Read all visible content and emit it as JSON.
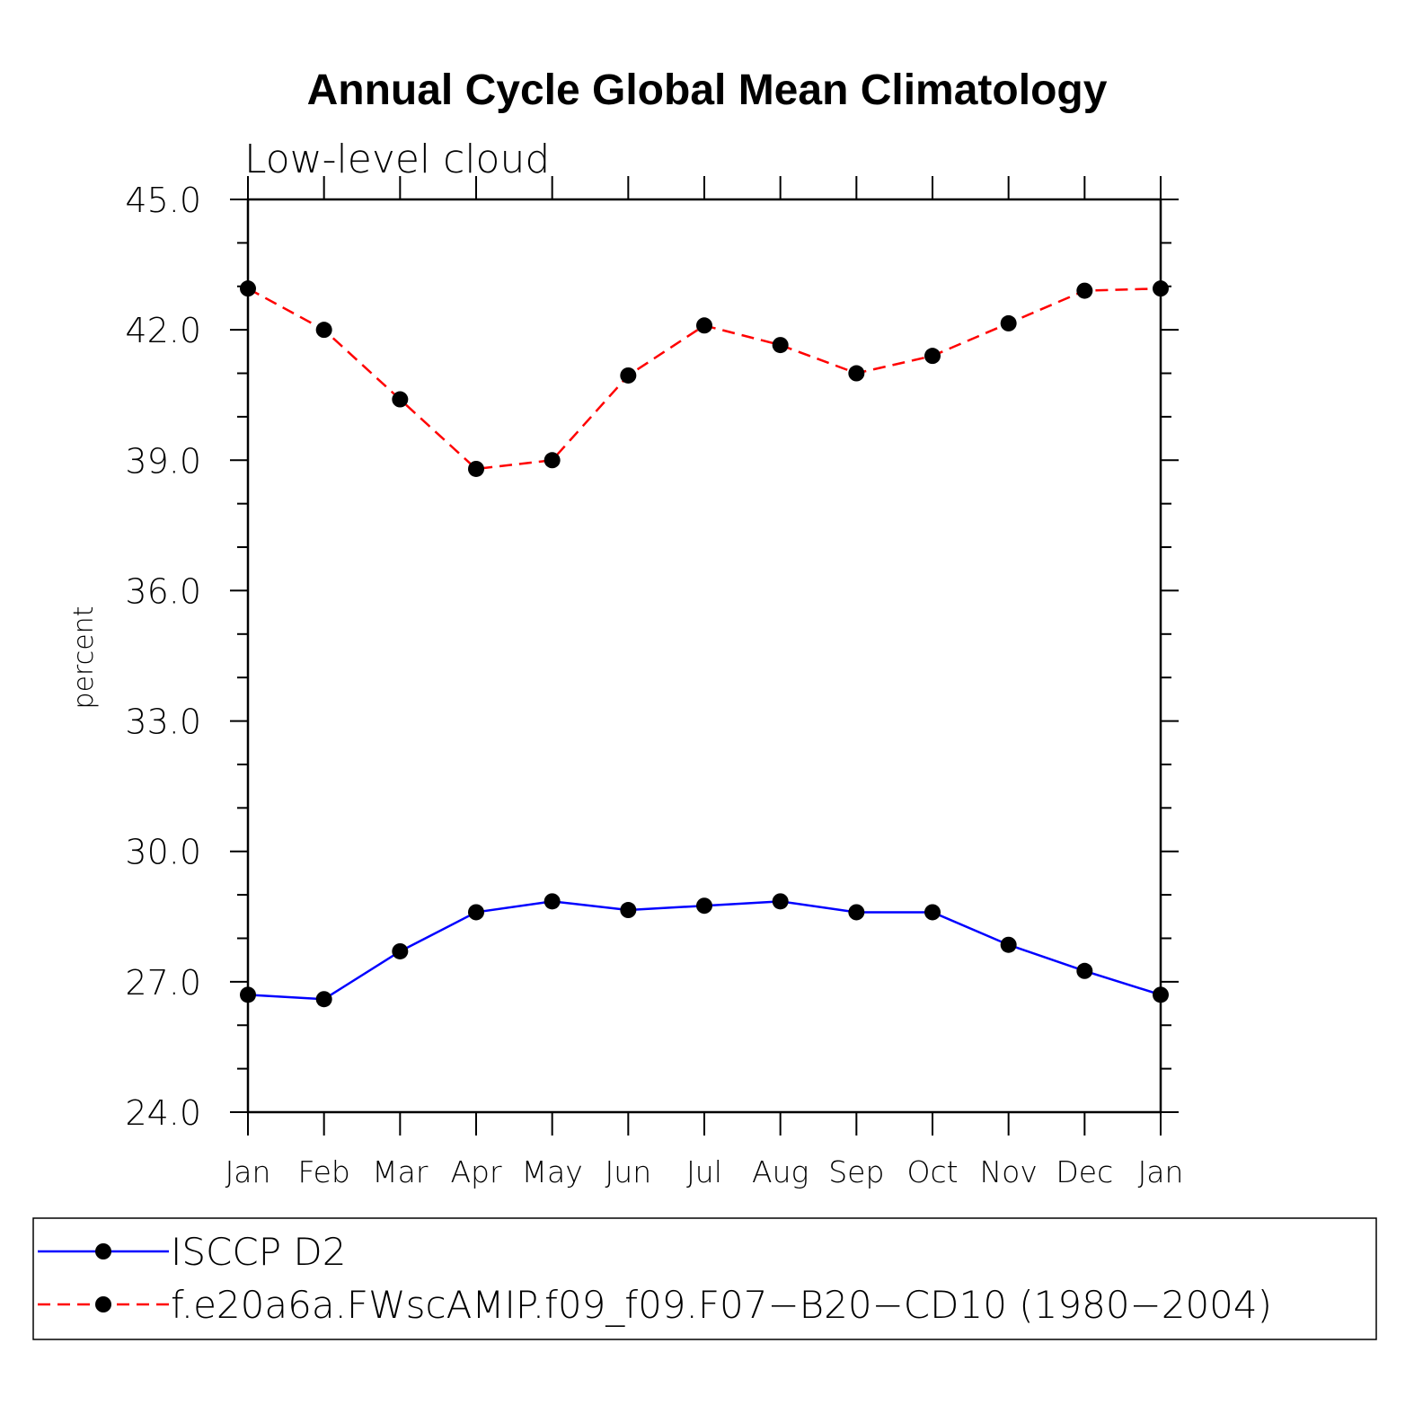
{
  "chart_data": {
    "type": "line",
    "title": "Annual Cycle Global Mean Climatology",
    "subtitle": "Low-level cloud",
    "ylabel": "percent",
    "xlabel": "",
    "categories": [
      "Jan",
      "Feb",
      "Mar",
      "Apr",
      "May",
      "Jun",
      "Jul",
      "Aug",
      "Sep",
      "Oct",
      "Nov",
      "Dec",
      "Jan"
    ],
    "ylim": [
      24.0,
      45.0
    ],
    "yticks": [
      "24.0",
      "27.0",
      "30.0",
      "33.0",
      "36.0",
      "39.0",
      "42.0",
      "45.0"
    ],
    "grid": false,
    "legend_position": "bottom",
    "series": [
      {
        "name": "ISCCP D2",
        "color": "#0000ff",
        "dash": "solid",
        "marker": "filled-circle",
        "values": [
          26.7,
          26.6,
          27.7,
          28.6,
          28.85,
          28.65,
          28.75,
          28.85,
          28.6,
          28.6,
          27.85,
          27.25,
          26.7
        ]
      },
      {
        "name": "f.e20a6a.FWscAMIP.f09_f09.F07−B20−CD10 (1980−2004)",
        "color": "#ff0000",
        "dash": "dashed",
        "marker": "filled-circle",
        "values": [
          42.95,
          42.0,
          40.4,
          38.8,
          39.0,
          40.95,
          42.1,
          41.65,
          41.0,
          41.4,
          42.15,
          42.9,
          42.95
        ]
      }
    ]
  }
}
